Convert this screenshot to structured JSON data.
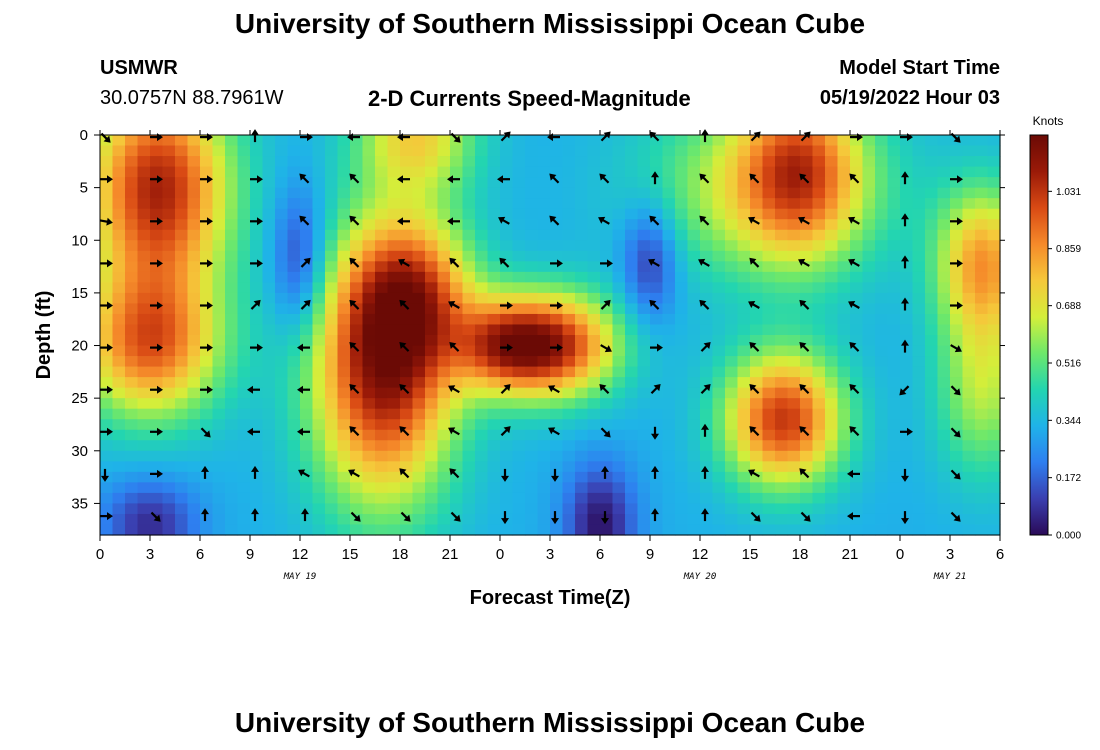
{
  "header": {
    "title": "University of Southern Mississippi Ocean Cube",
    "station": "USMWR",
    "coords": "30.0757N  88.7961W",
    "product": "2-D Currents Speed-Magnitude",
    "model_label": "Model Start Time",
    "model_time": "05/19/2022 Hour 03"
  },
  "footer": {
    "title": "University of Southern Mississippi Ocean Cube"
  },
  "colorbar": {
    "unit": "Knots"
  },
  "chart_data": {
    "type": "heatmap",
    "title": "2-D Currents Speed-Magnitude",
    "xlabel": "Forecast Time(Z)",
    "ylabel": "Depth (ft)",
    "x_tick_labels": [
      "0",
      "3",
      "6",
      "9",
      "12",
      "15",
      "18",
      "21",
      "0",
      "3",
      "6",
      "9",
      "12",
      "15",
      "18",
      "21",
      "0",
      "3",
      "6"
    ],
    "x_range_hours": [
      0,
      54
    ],
    "date_labels": [
      {
        "hour": 12,
        "label": "MAY 19"
      },
      {
        "hour": 36,
        "label": "MAY 20"
      },
      {
        "hour": 51,
        "label": "MAY 21"
      }
    ],
    "y_ticks": [
      0,
      5,
      10,
      15,
      20,
      25,
      30,
      35
    ],
    "y_range_ft": [
      0,
      38
    ],
    "colorbar_ticks": [
      "1.031",
      "0.859",
      "0.688",
      "0.516",
      "0.344",
      "0.172",
      "0.000"
    ],
    "colorbar_range": [
      0,
      1.2
    ],
    "colormap": [
      "#2a0a57",
      "#3a3fb0",
      "#2e7ff0",
      "#1fb3e8",
      "#23d5b0",
      "#6ee86a",
      "#d4ee3a",
      "#f5c83a",
      "#f58a2a",
      "#d94a14",
      "#9a1a08",
      "#6b0a05"
    ],
    "speed_blobs": [
      {
        "hour": 3.5,
        "depth": 5,
        "sh": 3.0,
        "sd": 7,
        "amp": 0.75
      },
      {
        "hour": 3,
        "depth": 20,
        "sh": 3.0,
        "sd": 5,
        "amp": 0.6
      },
      {
        "hour": 17,
        "depth": 22,
        "sh": 3.0,
        "sd": 9,
        "amp": 0.8
      },
      {
        "hour": 19,
        "depth": 15,
        "sh": 2.5,
        "sd": 5,
        "amp": 0.4
      },
      {
        "hour": 19,
        "depth": 0,
        "sh": 2.5,
        "sd": 4,
        "amp": 0.4
      },
      {
        "hour": 27,
        "depth": 20,
        "sh": 2.8,
        "sd": 3.5,
        "amp": 0.75
      },
      {
        "hour": 24,
        "depth": 20,
        "sh": 2.0,
        "sd": 3,
        "amp": 0.35
      },
      {
        "hour": 40,
        "depth": 5,
        "sh": 5.0,
        "sd": 6,
        "amp": 0.35
      },
      {
        "hour": 42,
        "depth": 3,
        "sh": 2.5,
        "sd": 6,
        "amp": 0.45
      },
      {
        "hour": 41,
        "depth": 27,
        "sh": 2.5,
        "sd": 4.5,
        "amp": 0.7
      },
      {
        "hour": 53,
        "depth": 12,
        "sh": 2.0,
        "sd": 5,
        "amp": 0.5
      },
      {
        "hour": 53,
        "depth": 24,
        "sh": 2.0,
        "sd": 6,
        "amp": 0.3
      }
    ],
    "speed_lows": [
      {
        "hour": 12,
        "depth": 12,
        "sh": 1.2,
        "sd": 5,
        "amp": 0.25
      },
      {
        "hour": 30,
        "depth": 37,
        "sh": 1.5,
        "sd": 4,
        "amp": 0.3
      },
      {
        "hour": 33,
        "depth": 12,
        "sh": 1.2,
        "sd": 4,
        "amp": 0.25
      },
      {
        "hour": 3,
        "depth": 37,
        "sh": 2.0,
        "sd": 3,
        "amp": 0.25
      }
    ],
    "vector_hours": [
      0,
      3,
      6,
      9,
      12,
      15,
      18,
      21,
      24,
      27,
      30,
      33,
      36,
      39,
      42,
      45,
      48,
      51
    ],
    "vector_depths": [
      0,
      4,
      8,
      12,
      16,
      20,
      24,
      28,
      32,
      36
    ],
    "vector_directions_deg": [
      [
        135,
        90,
        90,
        0,
        90,
        270,
        270,
        135,
        45,
        270,
        45,
        315,
        0,
        45,
        45,
        90,
        90,
        135
      ],
      [
        90,
        90,
        90,
        90,
        315,
        315,
        270,
        270,
        270,
        315,
        315,
        0,
        315,
        315,
        315,
        315,
        0,
        90
      ],
      [
        100,
        90,
        90,
        90,
        315,
        315,
        270,
        270,
        300,
        315,
        300,
        315,
        315,
        300,
        300,
        300,
        0,
        90
      ],
      [
        90,
        90,
        90,
        90,
        45,
        315,
        300,
        315,
        315,
        90,
        90,
        300,
        300,
        315,
        300,
        300,
        0,
        90
      ],
      [
        90,
        90,
        90,
        45,
        45,
        315,
        315,
        300,
        90,
        90,
        45,
        315,
        315,
        300,
        315,
        300,
        0,
        90
      ],
      [
        90,
        90,
        90,
        90,
        270,
        315,
        315,
        315,
        90,
        90,
        120,
        90,
        45,
        315,
        315,
        315,
        0,
        120
      ],
      [
        90,
        90,
        90,
        270,
        270,
        315,
        315,
        300,
        45,
        300,
        315,
        45,
        45,
        315,
        315,
        315,
        225,
        135
      ],
      [
        90,
        90,
        135,
        270,
        270,
        315,
        315,
        300,
        45,
        300,
        135,
        180,
        0,
        315,
        315,
        315,
        90,
        135
      ],
      [
        180,
        90,
        0,
        0,
        300,
        300,
        315,
        315,
        180,
        180,
        0,
        0,
        0,
        300,
        315,
        270,
        180,
        135
      ],
      [
        90,
        135,
        0,
        0,
        0,
        135,
        135,
        135,
        180,
        180,
        180,
        0,
        0,
        135,
        135,
        270,
        180,
        135
      ]
    ]
  }
}
